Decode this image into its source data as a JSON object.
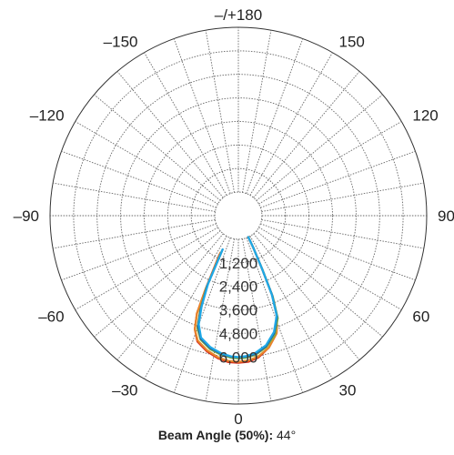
{
  "chart_data": {
    "type": "polar-line",
    "title": "",
    "angle_labels": [
      {
        "angle": 180,
        "text": "–/+180"
      },
      {
        "angle": 150,
        "text": "150"
      },
      {
        "angle": -150,
        "text": "–150"
      },
      {
        "angle": 120,
        "text": "120"
      },
      {
        "angle": -120,
        "text": "–120"
      },
      {
        "angle": 90,
        "text": "90"
      },
      {
        "angle": -90,
        "text": "–90"
      },
      {
        "angle": 60,
        "text": "60"
      },
      {
        "angle": -60,
        "text": "–60"
      },
      {
        "angle": 30,
        "text": "30"
      },
      {
        "angle": -30,
        "text": "–30"
      },
      {
        "angle": 0,
        "text": "0"
      }
    ],
    "radial_ticks": [
      {
        "value": 1200,
        "text": "1,200"
      },
      {
        "value": 2400,
        "text": "2,400"
      },
      {
        "value": 3600,
        "text": "3,600"
      },
      {
        "value": 4800,
        "text": "4,800"
      },
      {
        "value": 6000,
        "text": "6,000"
      }
    ],
    "rlim": [
      -1200,
      8400
    ],
    "angle_step": 10,
    "grid": true,
    "series": [
      {
        "color": "#d62718",
        "points": [
          [
            -26,
            1000
          ],
          [
            -24,
            3000
          ],
          [
            -23,
            4200
          ],
          [
            -21,
            5000
          ],
          [
            -18,
            5550
          ],
          [
            -13,
            5900
          ],
          [
            -8,
            6150
          ],
          [
            -4,
            6280
          ],
          [
            0,
            6300
          ],
          [
            4,
            6260
          ],
          [
            8,
            6100
          ],
          [
            13,
            5700
          ],
          [
            18,
            5100
          ],
          [
            21,
            4300
          ],
          [
            23,
            3200
          ],
          [
            24,
            1800
          ],
          [
            25,
            600
          ],
          [
            25,
            0
          ]
        ]
      },
      {
        "color": "#e8862a",
        "points": [
          [
            -26,
            900
          ],
          [
            -24,
            3000
          ],
          [
            -23,
            4200
          ],
          [
            -21,
            5000
          ],
          [
            -18,
            5500
          ],
          [
            -13,
            5850
          ],
          [
            -8,
            6100
          ],
          [
            -4,
            6220
          ],
          [
            0,
            6250
          ],
          [
            4,
            6200
          ],
          [
            8,
            6050
          ],
          [
            13,
            5700
          ],
          [
            18,
            5100
          ],
          [
            21,
            4300
          ],
          [
            23,
            3200
          ],
          [
            24,
            1800
          ],
          [
            25,
            600
          ],
          [
            25,
            0
          ]
        ]
      },
      {
        "color": "#7cb342",
        "points": [
          [
            -25,
            800
          ],
          [
            -24,
            2800
          ],
          [
            -22,
            4000
          ],
          [
            -20,
            4900
          ],
          [
            -17,
            5400
          ],
          [
            -12,
            5750
          ],
          [
            -7,
            5950
          ],
          [
            -3,
            6050
          ],
          [
            0,
            6070
          ],
          [
            3,
            6050
          ],
          [
            7,
            5950
          ],
          [
            12,
            5650
          ],
          [
            17,
            5150
          ],
          [
            21,
            4400
          ],
          [
            23,
            3300
          ],
          [
            24,
            1900
          ],
          [
            25,
            600
          ],
          [
            25,
            0
          ]
        ]
      },
      {
        "color": "#1e5aa8",
        "points": [
          [
            -25,
            700
          ],
          [
            -24,
            2700
          ],
          [
            -22,
            3900
          ],
          [
            -20,
            4800
          ],
          [
            -17,
            5350
          ],
          [
            -12,
            5700
          ],
          [
            -7,
            5900
          ],
          [
            -3,
            6000
          ],
          [
            0,
            6020
          ],
          [
            3,
            6000
          ],
          [
            7,
            5900
          ],
          [
            12,
            5600
          ],
          [
            17,
            5050
          ],
          [
            21,
            4300
          ],
          [
            23,
            3200
          ],
          [
            24,
            1800
          ],
          [
            25,
            600
          ],
          [
            25,
            0
          ]
        ]
      },
      {
        "color": "#1fa9e6",
        "points": [
          [
            -25,
            700
          ],
          [
            -24,
            2600
          ],
          [
            -22,
            3800
          ],
          [
            -20,
            4700
          ],
          [
            -17,
            5300
          ],
          [
            -12,
            5650
          ],
          [
            -7,
            5870
          ],
          [
            -3,
            5980
          ],
          [
            0,
            6000
          ],
          [
            3,
            5970
          ],
          [
            7,
            5850
          ],
          [
            12,
            5550
          ],
          [
            17,
            5000
          ],
          [
            21,
            4250
          ],
          [
            23,
            3150
          ],
          [
            24,
            1750
          ],
          [
            25,
            600
          ],
          [
            25,
            0
          ]
        ]
      }
    ]
  },
  "caption": {
    "label": "Beam Angle (50%):",
    "value": "44°"
  }
}
